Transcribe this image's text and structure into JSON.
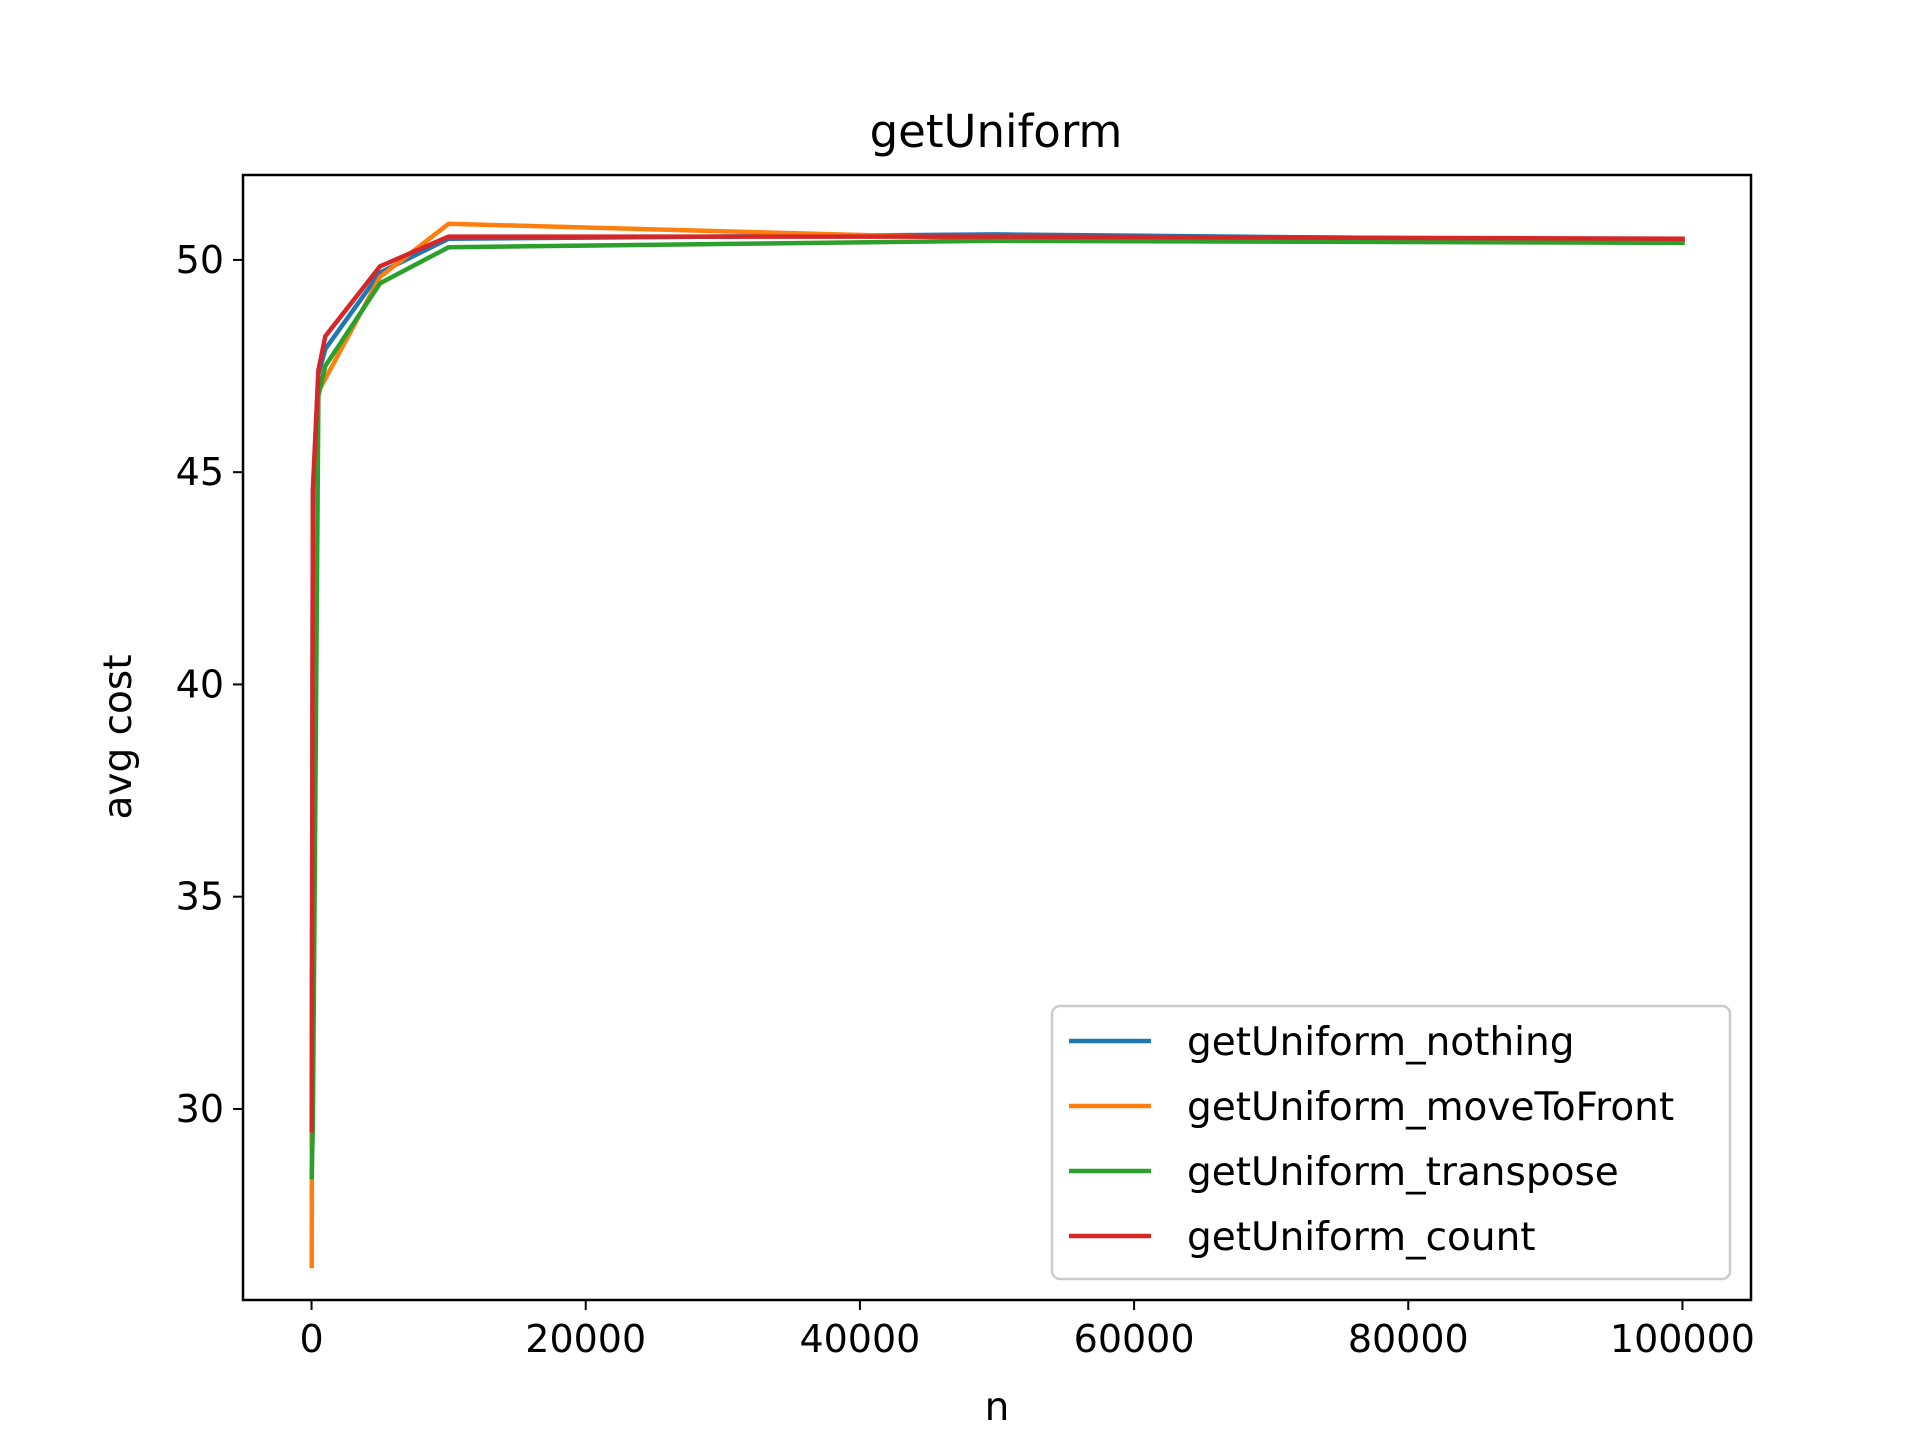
{
  "chart_data": {
    "type": "line",
    "title": "getUniform",
    "xlabel": "n",
    "ylabel": "avg cost",
    "xlim": [
      -5000,
      105000
    ],
    "ylim": [
      25.5,
      52.0
    ],
    "xticks": [
      0,
      20000,
      40000,
      60000,
      80000,
      100000
    ],
    "xtick_labels": [
      "0",
      "20000",
      "40000",
      "60000",
      "80000",
      "100000"
    ],
    "yticks": [
      30,
      35,
      40,
      45,
      50
    ],
    "ytick_labels": [
      "30",
      "35",
      "40",
      "45",
      "50"
    ],
    "grid": false,
    "legend_position": "lower-right",
    "x": [
      10,
      100,
      500,
      1000,
      5000,
      10000,
      50000,
      100000
    ],
    "series": [
      {
        "name": "getUniform_nothing",
        "color": "#1f77b4",
        "values": [
          29.1,
          44.5,
          47.3,
          47.9,
          49.7,
          50.5,
          50.6,
          50.45
        ]
      },
      {
        "name": "getUniform_moveToFront",
        "color": "#ff7f0e",
        "values": [
          26.3,
          44.2,
          46.9,
          47.2,
          49.6,
          50.85,
          50.5,
          50.5
        ]
      },
      {
        "name": "getUniform_transpose",
        "color": "#2ca02c",
        "values": [
          28.4,
          29.7,
          46.8,
          47.5,
          49.45,
          50.3,
          50.45,
          50.4
        ]
      },
      {
        "name": "getUniform_count",
        "color": "#d62728",
        "values": [
          29.5,
          44.6,
          47.4,
          48.2,
          49.85,
          50.55,
          50.55,
          50.5
        ]
      }
    ]
  }
}
